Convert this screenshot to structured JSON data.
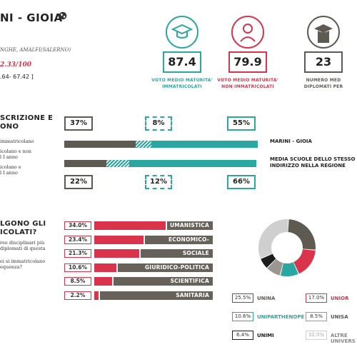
{
  "header": {
    "title": "NI - GIOIA",
    "location": "NGHE, AMALFI(SALERNO)",
    "score": "2.33/100",
    "range": ".64- 67.42 ]"
  },
  "cards": [
    {
      "value": "87.4",
      "label_1": "VOTO MEDIO MATURITA'",
      "label_2": "IMMATRICOLATI",
      "color": "#2aa7a1"
    },
    {
      "value": "79.9",
      "label_1": "VOTO MEDIO MATURITA'",
      "label_2": "NON IMMATRICOLATI",
      "color": "#d9344b"
    },
    {
      "value": "23",
      "label_1": "NUMERO MED",
      "label_2": "DIPLOMATI PER",
      "color": "#5e5a52"
    }
  ],
  "iscrizione": {
    "title_1": "SCRIZIONE E",
    "title_2": "ONO",
    "notes": [
      {
        "l1": "immatricolano",
        "l2": ""
      },
      {
        "l1": "icolano e non",
        "l2": "l I anno"
      },
      {
        "l1": "icolano e",
        "l2": "l I anno"
      }
    ],
    "top_pcts": [
      "37%",
      "8%",
      "55%"
    ],
    "bottom_pcts": [
      "22%",
      "12%",
      "66%"
    ],
    "bars": [
      {
        "label_1": "MARINI - GIOIA",
        "label_2": "",
        "segments": [
          37,
          8,
          55
        ]
      },
      {
        "label_1": "MEDIA SCUOLE DELLO STESSO",
        "label_2": "INDIRIZZO NELLA REGIONE",
        "segments": [
          22,
          12,
          66
        ]
      }
    ],
    "colors": {
      "grey": "#5e5a52",
      "teal": "#2aa7a1"
    }
  },
  "scelte": {
    "title_1": "LGONO GLI",
    "title_2": "ICOLATI?",
    "notes": [
      {
        "l1": "ree disciplinari più",
        "l2": "diplomati di questa"
      },
      {
        "l1": "ei si immatricolano",
        "l2": "equenza?"
      }
    ],
    "categories": [
      {
        "pct": "34.0%",
        "value": 34.0,
        "name": "UMANISTICA"
      },
      {
        "pct": "23.4%",
        "value": 23.4,
        "name": "ECONOMICO-STATISTICA"
      },
      {
        "pct": "21.3%",
        "value": 21.3,
        "name": "SOCIALE"
      },
      {
        "pct": "10.6%",
        "value": 10.6,
        "name": "GIURIDICO-POLITICA"
      },
      {
        "pct": "8.5%",
        "value": 8.5,
        "name": "SCIENTIFICA"
      },
      {
        "pct": "2.2%",
        "value": 2.2,
        "name": "SANITARIA"
      }
    ],
    "bar_color": "#d9344b"
  },
  "universities": {
    "slices": [
      {
        "pct": "25.5%",
        "value": 25.5,
        "name": "UNINA",
        "color": "#5e5a52"
      },
      {
        "pct": "17.0%",
        "value": 17.0,
        "name": "UNIOR",
        "color": "#d9344b"
      },
      {
        "pct": "10.6%",
        "value": 10.6,
        "name": "UNIPARTHENOPE",
        "color": "#2aa7a1"
      },
      {
        "pct": "8.5%",
        "value": 8.5,
        "name": "UNISA",
        "color": "#9a9690"
      },
      {
        "pct": "6.4%",
        "value": 6.4,
        "name": "UNIMI",
        "color": "#1c1c1c"
      },
      {
        "pct": "32.0%",
        "value": 32.0,
        "name": "ALTRE",
        "name_2": "UNIVERS",
        "color": "#cfcfcf"
      }
    ]
  }
}
